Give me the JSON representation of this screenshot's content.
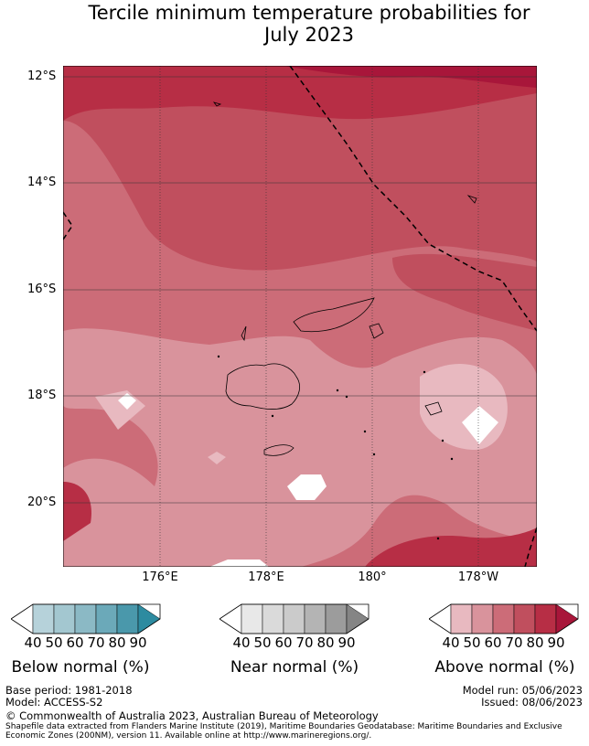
{
  "title_line1": "Tercile minimum temperature probabilities for",
  "title_line2": "July 2023",
  "map": {
    "lat_labels": [
      "12°S",
      "14°S",
      "16°S",
      "18°S",
      "20°S"
    ],
    "lon_labels": [
      "176°E",
      "178°E",
      "180°",
      "178°W"
    ]
  },
  "colorbars": [
    {
      "name": "Below normal (%)",
      "ticks": [
        "40",
        "50",
        "60",
        "70",
        "80",
        "90"
      ],
      "colors": [
        "#ffffff",
        "#b6d2da",
        "#a3c7d0",
        "#8bb9c5",
        "#6ba9b9",
        "#4a98ab",
        "#2d8ba0"
      ]
    },
    {
      "name": "Near normal (%)",
      "ticks": [
        "40",
        "50",
        "60",
        "70",
        "80",
        "90"
      ],
      "colors": [
        "#ffffff",
        "#e8e8e8",
        "#dadada",
        "#cbcbcb",
        "#b4b4b4",
        "#9c9c9c",
        "#858585"
      ]
    },
    {
      "name": "Above normal (%)",
      "ticks": [
        "40",
        "50",
        "60",
        "70",
        "80",
        "90"
      ],
      "colors": [
        "#ffffff",
        "#e8b9c0",
        "#d9939c",
        "#cc6c78",
        "#c04f5e",
        "#b72e45",
        "#a8163a"
      ]
    }
  ],
  "footer": {
    "base_period": "Base period: 1981-2018",
    "model": "Model: ACCESS-S2",
    "model_run": "Model run: 05/06/2023",
    "issued": "Issued: 08/06/2023",
    "copyright": "© Commonwealth of Australia 2023, Australian Bureau of Meteorology",
    "shapefile_1": "Shapefile data extracted from Flanders Marine Institute (2019), Maritime Boundaries Geodatabase: Maritime Boundaries and Exclusive",
    "shapefile_2": "Economic Zones (200NM), version 11. Available online at http://www.marineregions.org/."
  }
}
